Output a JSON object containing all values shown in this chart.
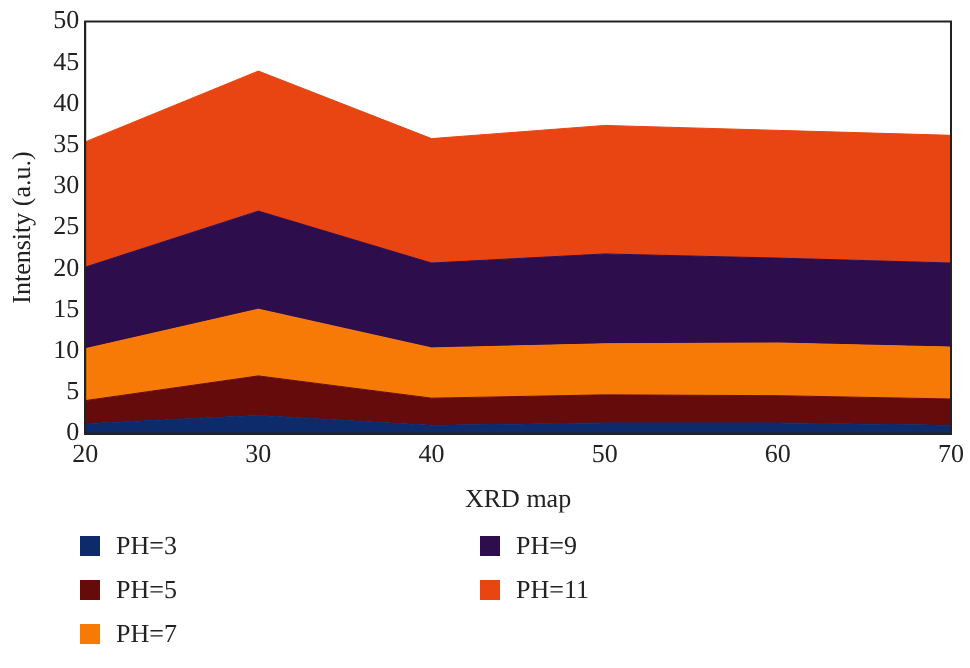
{
  "chart_data": {
    "type": "area",
    "stacked": true,
    "xlabel": "XRD map",
    "ylabel": "Intensity (a.u.)",
    "x": [
      20,
      30,
      40,
      50,
      60,
      70
    ],
    "xlim": [
      20,
      70
    ],
    "xticks": [
      20,
      30,
      40,
      50,
      60,
      70
    ],
    "ylim": [
      0,
      50
    ],
    "yticks": [
      0,
      5,
      10,
      15,
      20,
      25,
      30,
      35,
      40,
      45,
      50
    ],
    "grid": false,
    "legend": "bottom",
    "series": [
      {
        "name": "PH=3",
        "color": "#0d2a6b",
        "values": [
          1.2,
          2.2,
          1.0,
          1.3,
          1.3,
          1.0
        ]
      },
      {
        "name": "PH=5",
        "color": "#650b0b",
        "values": [
          2.8,
          4.8,
          3.3,
          3.4,
          3.3,
          3.2
        ]
      },
      {
        "name": "PH=7",
        "color": "#f77a06",
        "values": [
          6.3,
          8.1,
          6.1,
          6.2,
          6.4,
          6.3
        ]
      },
      {
        "name": "PH=9",
        "color": "#2e0d4d",
        "values": [
          9.9,
          11.9,
          10.3,
          10.9,
          10.3,
          10.2
        ]
      },
      {
        "name": "PH=11",
        "color": "#e84512",
        "values": [
          15.2,
          17.0,
          15.1,
          15.6,
          15.5,
          15.5
        ]
      }
    ]
  }
}
